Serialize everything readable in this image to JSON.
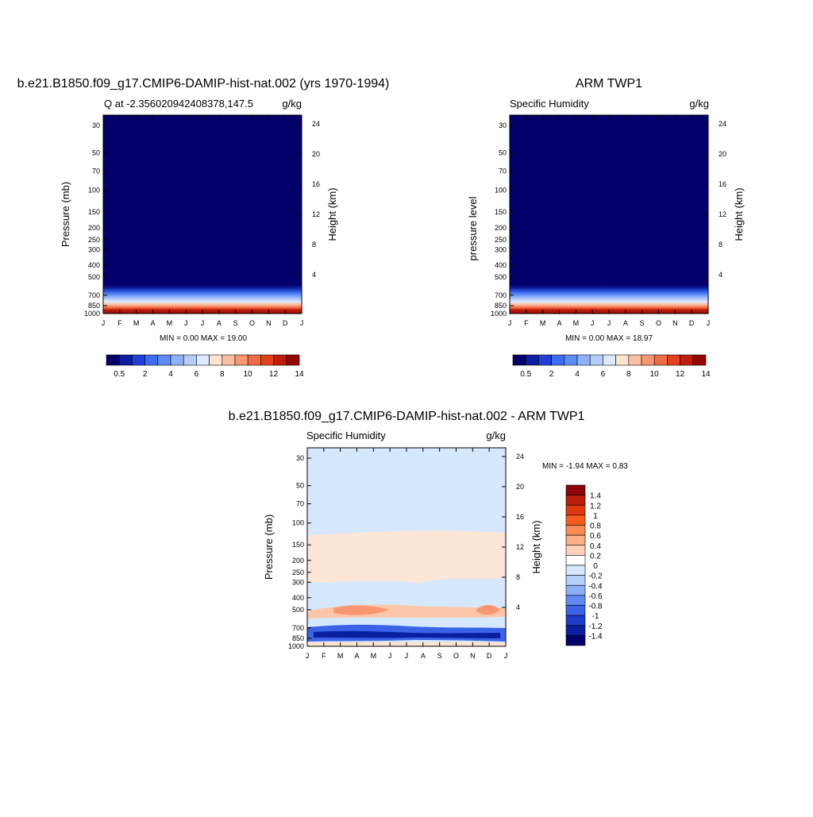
{
  "chart_data": [
    {
      "type": "heatmap",
      "title": "b.e21.B1850.f09_g17.CMIP6-DAMIP-hist-nat.002 (yrs 1970-1994)",
      "subtitle_left": "Q at -2.356020942408378,147.5",
      "subtitle_right": "g/kg",
      "ylabel": "Pressure (mb)",
      "ylabel_right": "Height (km)",
      "x_ticks": [
        "J",
        "F",
        "M",
        "A",
        "M",
        "J",
        "J",
        "A",
        "S",
        "O",
        "N",
        "D",
        "J"
      ],
      "y_ticks": [
        30,
        50,
        70,
        100,
        150,
        200,
        250,
        300,
        400,
        500,
        700,
        850,
        1000
      ],
      "height_ticks": [
        24,
        20,
        16,
        12,
        8,
        4
      ],
      "stats_text": "MIN =   0.00 MAX =  19.00",
      "min": 0.0,
      "max": 19.0,
      "colorbar_labels": [
        "0.5",
        "2",
        "4",
        "6",
        "8",
        "10",
        "12",
        "14"
      ]
    },
    {
      "type": "heatmap",
      "title": "ARM TWP1",
      "subtitle_left": "Specific Humidity",
      "subtitle_right": "g/kg",
      "ylabel": "pressure level",
      "ylabel_right": "Height (km)",
      "x_ticks": [
        "J",
        "F",
        "M",
        "A",
        "M",
        "J",
        "J",
        "A",
        "S",
        "O",
        "N",
        "D",
        "J"
      ],
      "y_ticks": [
        30,
        50,
        70,
        100,
        150,
        200,
        250,
        300,
        400,
        500,
        700,
        850,
        1000
      ],
      "height_ticks": [
        24,
        20,
        16,
        12,
        8,
        4
      ],
      "stats_text": "MIN =   0.00 MAX =  18.97",
      "min": 0.0,
      "max": 18.97,
      "colorbar_labels": [
        "0.5",
        "2",
        "4",
        "6",
        "8",
        "10",
        "12",
        "14"
      ]
    },
    {
      "type": "heatmap",
      "title": "b.e21.B1850.f09_g17.CMIP6-DAMIP-hist-nat.002 - ARM TWP1",
      "subtitle_left": "Specific Humidity",
      "subtitle_right": "g/kg",
      "ylabel": "Pressure (mb)",
      "ylabel_right": "Height (km)",
      "x_ticks": [
        "J",
        "F",
        "M",
        "A",
        "M",
        "J",
        "J",
        "A",
        "S",
        "O",
        "N",
        "D",
        "J"
      ],
      "y_ticks": [
        30,
        50,
        70,
        100,
        150,
        200,
        250,
        300,
        400,
        500,
        700,
        850,
        1000
      ],
      "height_ticks": [
        24,
        20,
        16,
        12,
        8,
        4
      ],
      "stats_text": "MIN =  -1.94 MAX =   0.83",
      "min": -1.94,
      "max": 0.83,
      "colorbar_labels": [
        "1.4",
        "1.2",
        "1",
        "0.8",
        "0.6",
        "0.4",
        "0.2",
        "0",
        "-0.2",
        "-0.4",
        "-0.6",
        "-0.8",
        "-1",
        "-1.2",
        "-1.4"
      ]
    }
  ],
  "colorbars": {
    "abs_colors": [
      "#03006b",
      "#0c1fa0",
      "#1f3fd6",
      "#3b6cf2",
      "#5f8df7",
      "#8eb2fa",
      "#b6cdfb",
      "#ddeafe",
      "#fee3cf",
      "#fcc0a2",
      "#f99770",
      "#f26c43",
      "#e4401f",
      "#c11d0b",
      "#920704"
    ],
    "diff_colors": [
      "#8f0505",
      "#b81e0a",
      "#e0380f",
      "#fa5c1f",
      "#fc8b54",
      "#fdae85",
      "#fed2b8",
      "#ffffff",
      "#d6e8fd",
      "#b3cefb",
      "#89aff8",
      "#5f89f3",
      "#3b63e8",
      "#1d3dc8",
      "#0a1fa0",
      "#03006b"
    ]
  }
}
